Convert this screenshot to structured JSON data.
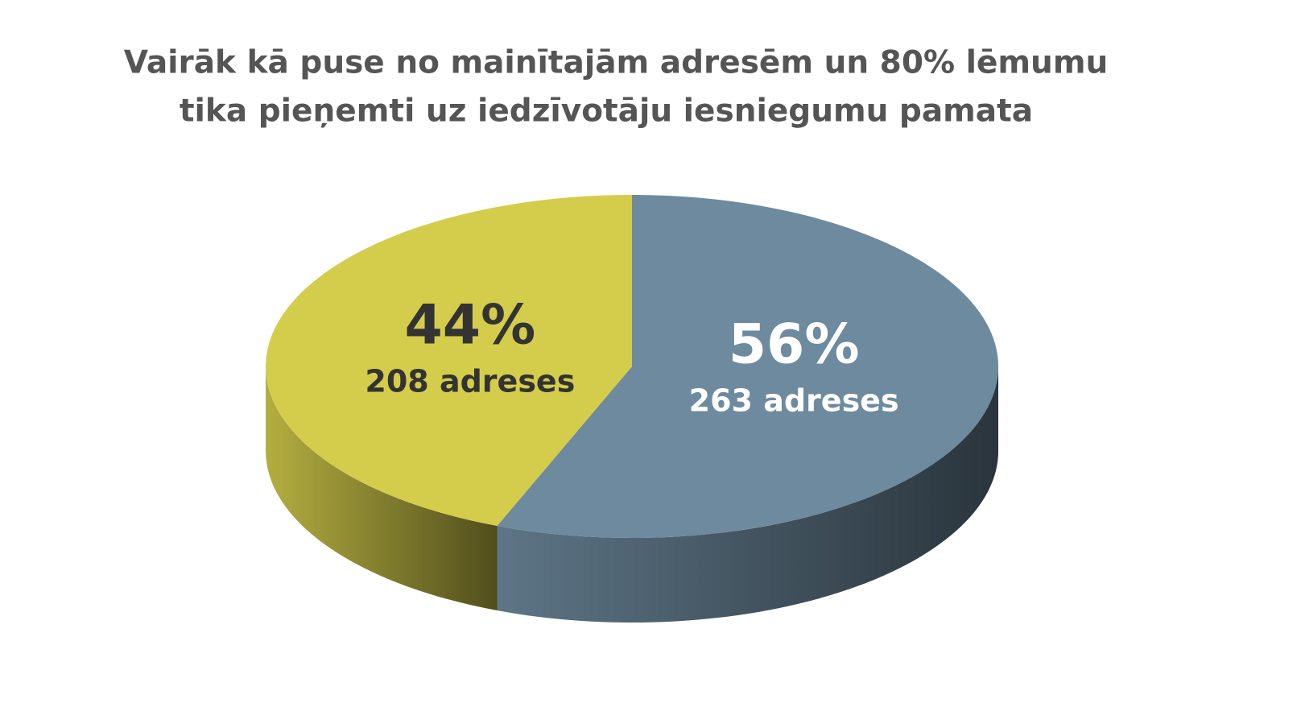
{
  "chart_data": {
    "type": "pie",
    "title": [
      "Vairāk kā puse no mainītajām adresēm un 80% lēmumu",
      "tika pieņemti uz iedzīvotāju iesniegumu pamata"
    ],
    "values": [
      56,
      44
    ],
    "value_labels": [
      "56%",
      "44%"
    ],
    "slice_labels": [
      "263 adreses",
      "208 adreses"
    ],
    "colors": [
      "#6e8a9e",
      "#d4cd4b"
    ],
    "label_colors": [
      "#ffffff",
      "#333333"
    ]
  }
}
